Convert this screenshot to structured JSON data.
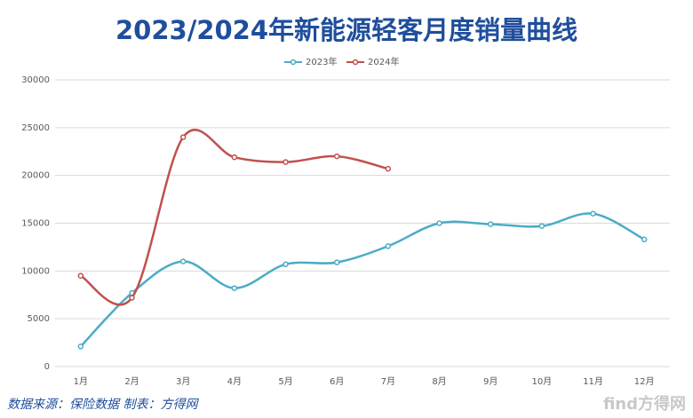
{
  "chart_data": {
    "type": "line",
    "title": "2023/2024年新能源轻客月度销量曲线",
    "categories": [
      "1月",
      "2月",
      "3月",
      "4月",
      "5月",
      "6月",
      "7月",
      "8月",
      "9月",
      "10月",
      "11月",
      "12月"
    ],
    "series": [
      {
        "name": "2023年",
        "color": "#4bacc6",
        "values": [
          2100,
          7700,
          11000,
          8200,
          10700,
          10900,
          12600,
          15000,
          14900,
          14700,
          16000,
          13300
        ]
      },
      {
        "name": "2024年",
        "color": "#c0504d",
        "values": [
          9500,
          7200,
          24000,
          21900,
          21400,
          22000,
          20700,
          null,
          null,
          null,
          null,
          null
        ]
      }
    ],
    "ylim": [
      0,
      30000
    ],
    "yticks": [
      0,
      5000,
      10000,
      15000,
      20000,
      25000,
      30000
    ],
    "grid": true,
    "legend": "top",
    "smooth": true,
    "source": "数据来源：保险数据  制表：方得网",
    "watermark": "find方得网"
  }
}
